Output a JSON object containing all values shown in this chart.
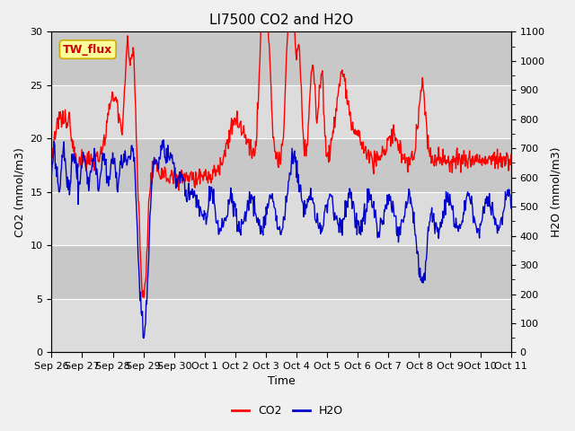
{
  "title": "LI7500 CO2 and H2O",
  "xlabel": "Time",
  "ylabel_left": "CO2 (mmol/m3)",
  "ylabel_right": "H2O (mmol/m3)",
  "ylim_left": [
    0,
    30
  ],
  "ylim_right": [
    0,
    1100
  ],
  "yticks_left": [
    0,
    5,
    10,
    15,
    20,
    25,
    30
  ],
  "yticks_right": [
    0,
    100,
    200,
    300,
    400,
    500,
    600,
    700,
    800,
    900,
    1000,
    1100
  ],
  "xtick_labels": [
    "Sep 26",
    "Sep 27",
    "Sep 28",
    "Sep 29",
    "Sep 30",
    "Oct 1",
    "Oct 2",
    "Oct 3",
    "Oct 4",
    "Oct 5",
    "Oct 6",
    "Oct 7",
    "Oct 8",
    "Oct 9",
    "Oct 10",
    "Oct 11"
  ],
  "annotation_text": "TW_flux",
  "co2_color": "#FF0000",
  "h2o_color": "#0000CC",
  "bg_light": "#DCDCDC",
  "bg_dark": "#C8C8C8",
  "fig_bg": "#F0F0F0",
  "line_width": 1.0,
  "title_fontsize": 11,
  "label_fontsize": 9,
  "tick_fontsize": 8,
  "legend_fontsize": 9,
  "n_days": 15.5,
  "n_points": 744,
  "random_seed": 12345
}
